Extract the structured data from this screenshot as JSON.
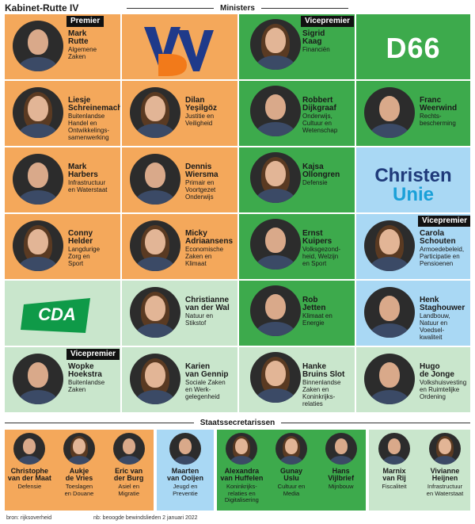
{
  "title": "Kabinet-Rutte IV",
  "ministers_heading": "Ministers",
  "staats_heading": "Staatssecretarissen",
  "badges": {
    "premier": "Premier",
    "vicepremier": "Vicepremier"
  },
  "logos": {
    "vvd": "VVD",
    "d66": "D66",
    "cu_line1": "Christen",
    "cu_line2": "Unie",
    "cda": "CDA"
  },
  "colors": {
    "vvd": "#f4a85b",
    "d66": "#3daa4c",
    "christenunie": "#a9d8f4",
    "cda": "#c9e6cc"
  },
  "ministers": [
    {
      "name": "Mark\nRutte",
      "role": "Algemene\nZaken"
    },
    {
      "name": "Sigrid\nKaag",
      "role": "Financiën"
    },
    {
      "name": "Liesje\nSchreinemacher",
      "role": "Buitenlandse\nHandel en\nOntwikkelings-\nsamenwerking"
    },
    {
      "name": "Dilan\nYeşilgöz",
      "role": "Justitie en\nVeiligheid"
    },
    {
      "name": "Robbert\nDijkgraaf",
      "role": "Onderwijs,\nCultuur en\nWetenschap"
    },
    {
      "name": "Franc\nWeerwind",
      "role": "Rechts-\nbescherming"
    },
    {
      "name": "Mark\nHarbers",
      "role": "Infrastructuur\nen Waterstaat"
    },
    {
      "name": "Dennis\nWiersma",
      "role": "Primair en\nVoortgezet\nOnderwijs"
    },
    {
      "name": "Kajsa\nOllongren",
      "role": "Defensie"
    },
    {
      "name": "Conny\nHelder",
      "role": "Langdurige\nZorg en\nSport"
    },
    {
      "name": "Micky\nAdriaansens",
      "role": "Economische\nZaken en\nKlimaat"
    },
    {
      "name": "Ernst\nKuipers",
      "role": "Volksgezond-\nheid, Welzijn\nen Sport"
    },
    {
      "name": "Carola\nSchouten",
      "role": "Armoedebeleid,\nParticipatie en\nPensioenen"
    },
    {
      "name": "Christianne\nvan der Wal",
      "role": "Natuur en\nStikstof"
    },
    {
      "name": "Rob\nJetten",
      "role": "Klimaat en\nEnergie"
    },
    {
      "name": "Henk\nStaghouwer",
      "role": "Landbouw,\nNatuur en\nVoedsel-\nkwaliteit"
    },
    {
      "name": "Wopke\nHoekstra",
      "role": "Buitenlandse\nZaken"
    },
    {
      "name": "Karien\nvan Gennip",
      "role": "Sociale Zaken\nen Werk-\ngelegenheid"
    },
    {
      "name": "Hanke\nBruins Slot",
      "role": "Binnenlandse\nZaken en\nKoninkrijks-\nrelaties"
    },
    {
      "name": "Hugo\nde Jonge",
      "role": "Volkshuisvesting\nen Ruimtelijke\nOrdening"
    }
  ],
  "staatssecretarissen": [
    {
      "name": "Christophe\nvan der Maat",
      "role": "Defensie"
    },
    {
      "name": "Aukje\nde Vries",
      "role": "Toeslagen\nen Douane"
    },
    {
      "name": "Eric van\nder Burg",
      "role": "Asiel en\nMigratie"
    },
    {
      "name": "Maarten\nvan Ooijen",
      "role": "Jeugd en\nPreventie"
    },
    {
      "name": "Alexandra\nvan Huffelen",
      "role": "Koninkrijks-\nrelaties en\nDigitalisering"
    },
    {
      "name": "Gunay\nUslu",
      "role": "Cultuur en\nMedia"
    },
    {
      "name": "Hans\nVijlbrief",
      "role": "Mijnbouw"
    },
    {
      "name": "Marnix\nvan Rij",
      "role": "Fiscaliteit"
    },
    {
      "name": "Vivianne\nHeijnen",
      "role": "Infrastructuur\nen Waterstaat"
    }
  ],
  "footer": {
    "source": "bron: rijksoverheid",
    "note": "nb: beoogde bewindslieden 2 januari 2022"
  }
}
